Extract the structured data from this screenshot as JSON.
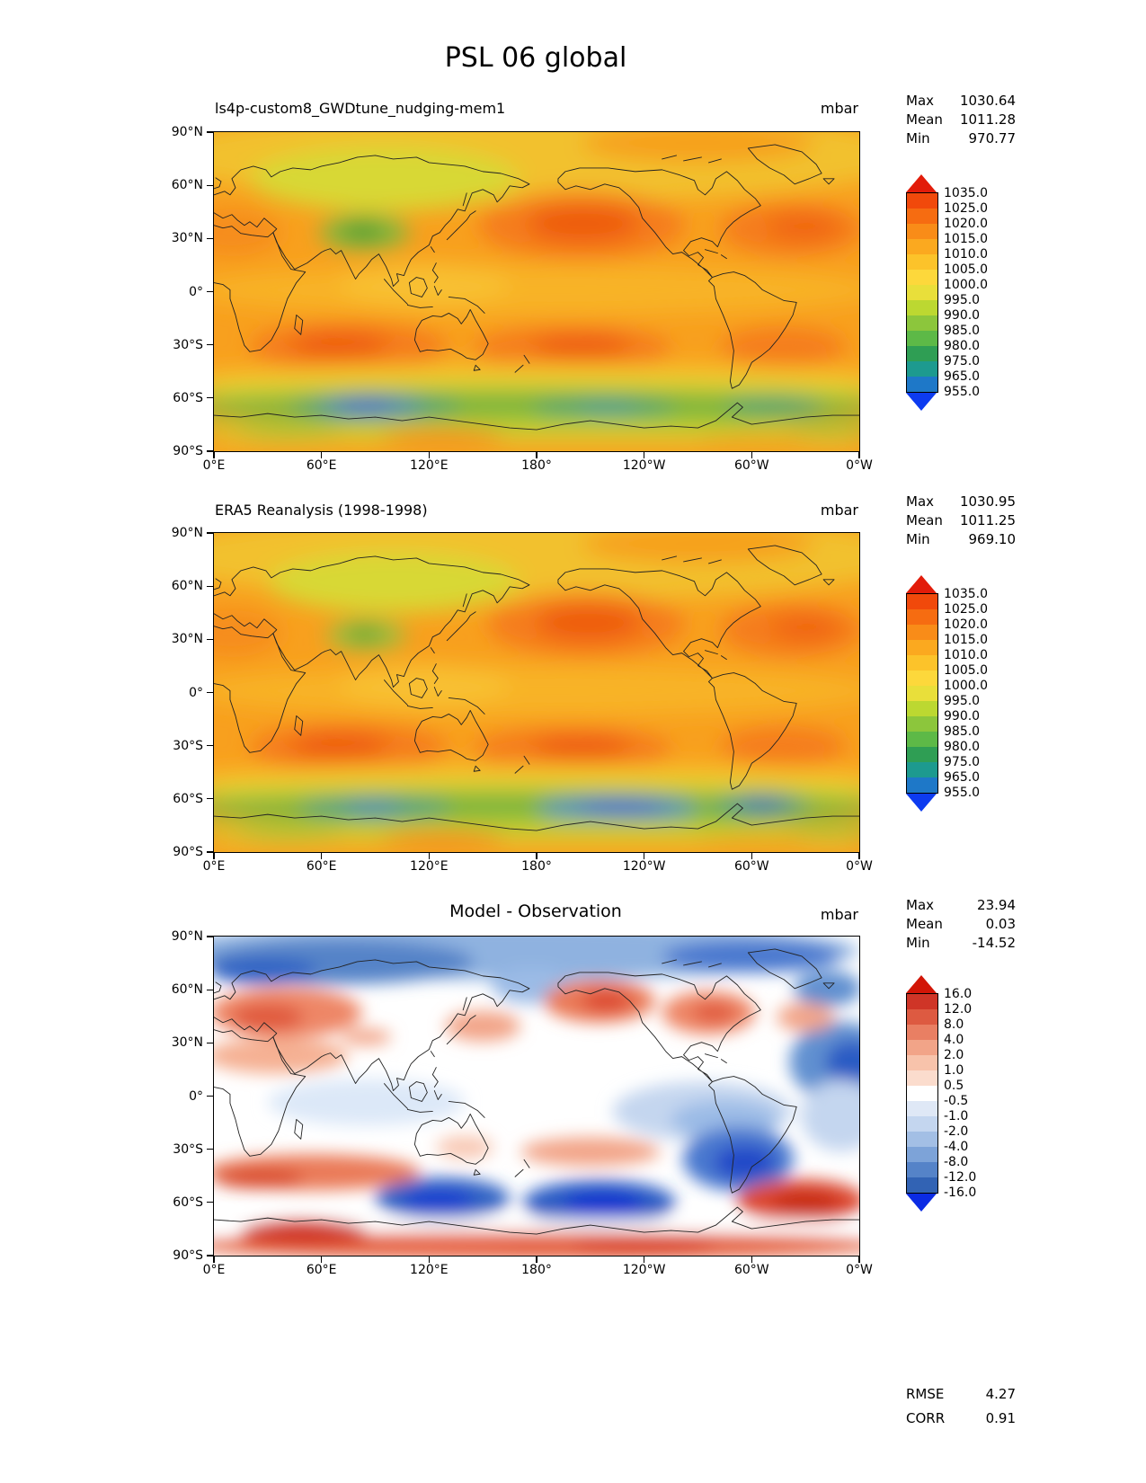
{
  "title": "PSL 06 global",
  "axes": {
    "lat_ticks": [
      "90°N",
      "60°N",
      "30°N",
      "0°",
      "30°S",
      "60°S",
      "90°S"
    ],
    "lon_ticks": [
      "0°E",
      "60°E",
      "120°E",
      "180°",
      "120°W",
      "60°W",
      "0°W"
    ]
  },
  "panels": [
    {
      "title": "ls4p-custom8_GWDtune_nudging-mem1",
      "units": "mbar",
      "stats": [
        {
          "label": "Max",
          "value": "1030.64"
        },
        {
          "label": "Mean",
          "value": "1011.28"
        },
        {
          "label": "Min",
          "value": "970.77"
        }
      ],
      "colorbar": {
        "tick_labels": [
          "1035.0",
          "1025.0",
          "1020.0",
          "1015.0",
          "1010.0",
          "1005.0",
          "1000.0",
          "995.0",
          "990.0",
          "985.0",
          "980.0",
          "975.0",
          "965.0",
          "955.0"
        ],
        "segment_colors": [
          "#f1490b",
          "#f66c11",
          "#f98c18",
          "#fba91f",
          "#fcc32a",
          "#fdd83b",
          "#e9df3a",
          "#bcd831",
          "#8cc63c",
          "#5db947",
          "#2f9e54",
          "#1d9a8f",
          "#1e78c8"
        ],
        "arrow_top": "#e21c0a",
        "arrow_bottom": "#0d3bf0"
      }
    },
    {
      "title": "ERA5 Reanalysis (1998-1998)",
      "units": "mbar",
      "stats": [
        {
          "label": "Max",
          "value": "1030.95"
        },
        {
          "label": "Mean",
          "value": "1011.25"
        },
        {
          "label": "Min",
          "value": "969.10"
        }
      ],
      "colorbar": {
        "tick_labels": [
          "1035.0",
          "1025.0",
          "1020.0",
          "1015.0",
          "1010.0",
          "1005.0",
          "1000.0",
          "995.0",
          "990.0",
          "985.0",
          "980.0",
          "975.0",
          "965.0",
          "955.0"
        ],
        "segment_colors": [
          "#f1490b",
          "#f66c11",
          "#f98c18",
          "#fba91f",
          "#fcc32a",
          "#fdd83b",
          "#e9df3a",
          "#bcd831",
          "#8cc63c",
          "#5db947",
          "#2f9e54",
          "#1d9a8f",
          "#1e78c8"
        ],
        "arrow_top": "#e21c0a",
        "arrow_bottom": "#0d3bf0"
      }
    },
    {
      "title": "Model - Observation",
      "units": "mbar",
      "stats": [
        {
          "label": "Max",
          "value": "23.94"
        },
        {
          "label": "Mean",
          "value": "0.03"
        },
        {
          "label": "Min",
          "value": "-14.52"
        }
      ],
      "extra_stats": [
        {
          "label": "RMSE",
          "value": "4.27"
        },
        {
          "label": "CORR",
          "value": "0.91"
        }
      ],
      "colorbar": {
        "tick_labels": [
          "16.0",
          "12.0",
          "8.0",
          "4.0",
          "2.0",
          "1.0",
          "0.5",
          "-0.5",
          "-1.0",
          "-2.0",
          "-4.0",
          "-8.0",
          "-12.0",
          "-16.0"
        ],
        "segment_colors": [
          "#cf3527",
          "#dd5a41",
          "#e97f63",
          "#f2a488",
          "#f8c3ab",
          "#fbdccd",
          "#ffffff",
          "#dfe8f6",
          "#c4d6ef",
          "#a3bfe5",
          "#7da3d8",
          "#5583c8",
          "#3263b4"
        ],
        "arrow_top": "#d21607",
        "arrow_bottom": "#0b2be4"
      }
    }
  ],
  "chart_data": [
    {
      "type": "heatmap",
      "subtype": "filled_contour_map",
      "variable": "PSL (sea level pressure)",
      "title": "ls4p-custom8_GWDtune_nudging-mem1",
      "units": "mbar",
      "projection": "equirectangular, Pacific-centered, longitude 0°E to 0°W (0-360)",
      "x_ticks": [
        "0°E",
        "60°E",
        "120°E",
        "180°",
        "120°W",
        "60°W",
        "0°W"
      ],
      "y_ticks": [
        "90°N",
        "60°N",
        "30°N",
        "0°",
        "30°S",
        "60°S",
        "90°S"
      ],
      "contour_levels": [
        955.0,
        965.0,
        975.0,
        980.0,
        985.0,
        990.0,
        995.0,
        1000.0,
        1005.0,
        1010.0,
        1015.0,
        1020.0,
        1025.0,
        1035.0
      ],
      "stats": {
        "max": 1030.64,
        "mean": 1011.28,
        "min": 970.77
      },
      "pattern_notes": "Orange/yellow (1005-1025 mbar) over most of globe; subtropical highs (>1020) over N and S Pacific, N and S Atlantic and S Indian Ocean; green patch (~990) over Tibetan Plateau; deep green-to-blue circumpolar low band (~960-990) near 60°S with minimum over the S Indian Ocean sector; yellow-green over Antarctica edge."
    },
    {
      "type": "heatmap",
      "subtype": "filled_contour_map",
      "variable": "PSL (sea level pressure)",
      "title": "ERA5 Reanalysis (1998-1998)",
      "units": "mbar",
      "projection": "equirectangular, Pacific-centered, longitude 0°E to 0°W (0-360)",
      "x_ticks": [
        "0°E",
        "60°E",
        "120°E",
        "180°",
        "120°W",
        "60°W",
        "0°W"
      ],
      "y_ticks": [
        "90°N",
        "60°N",
        "30°N",
        "0°",
        "30°S",
        "60°S",
        "90°S"
      ],
      "contour_levels": [
        955.0,
        965.0,
        975.0,
        980.0,
        985.0,
        990.0,
        995.0,
        1000.0,
        1005.0,
        1010.0,
        1015.0,
        1020.0,
        1025.0,
        1035.0
      ],
      "stats": {
        "max": 1030.95,
        "mean": 1011.25,
        "min": 969.1
      },
      "pattern_notes": "Very similar to model panel; circumpolar low band near 60°S with deepest blue minima over the central-south Pacific (~180-120°W) and near 60°W."
    },
    {
      "type": "heatmap",
      "subtype": "filled_contour_difference_map",
      "variable": "PSL model minus observation",
      "title": "Model - Observation",
      "units": "mbar",
      "projection": "equirectangular, Pacific-centered, longitude 0°E to 0°W (0-360)",
      "x_ticks": [
        "0°E",
        "60°E",
        "120°E",
        "180°",
        "120°W",
        "60°W",
        "0°W"
      ],
      "y_ticks": [
        "90°N",
        "60°N",
        "30°N",
        "0°",
        "30°S",
        "60°S",
        "90°S"
      ],
      "contour_levels": [
        -16.0,
        -12.0,
        -8.0,
        -4.0,
        -2.0,
        -1.0,
        -0.5,
        0.5,
        1.0,
        2.0,
        4.0,
        8.0,
        12.0,
        16.0
      ],
      "stats": {
        "max": 23.94,
        "mean": 0.03,
        "min": -14.52,
        "rmse": 4.27,
        "corr": 0.91
      },
      "pattern_notes": "Blue (negative) over the Arctic, subtropical N Atlantic, SE Pacific off S America, S Indian ~50°S and S Pacific ~55°S; red (positive) over Europe/W Asia, NE Pacific, N America, S Indian ~40°S, S Atlantic ~50°S and broadly around Antarctica; near-white tropics."
    }
  ]
}
